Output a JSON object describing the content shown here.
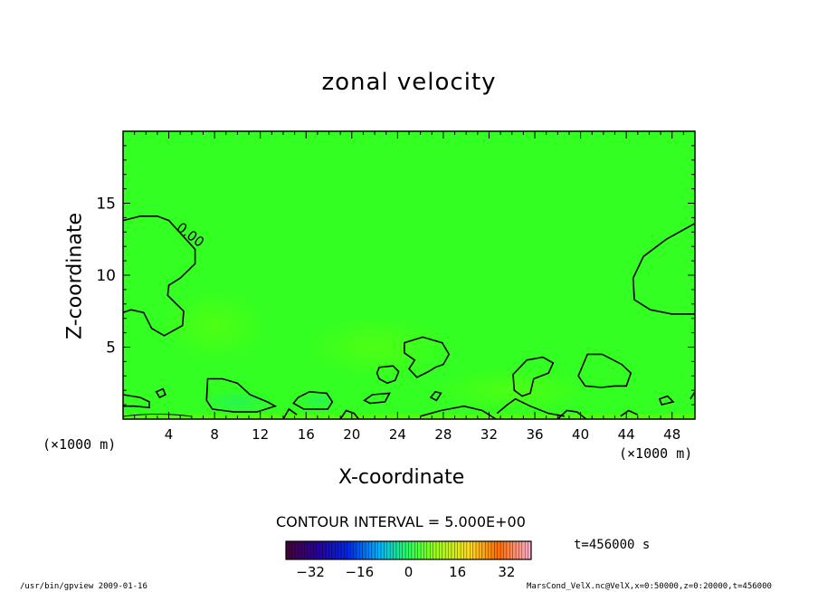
{
  "chart_data": {
    "type": "heatmap",
    "title": "zonal velocity",
    "xlabel": "X-coordinate",
    "ylabel": "Z-coordinate",
    "x_unit": "(×1000 m)",
    "y_unit": "(×1000 m)",
    "xlim": [
      0,
      50
    ],
    "ylim": [
      0,
      20
    ],
    "x_ticks": [
      4,
      8,
      12,
      16,
      20,
      24,
      28,
      32,
      36,
      40,
      44,
      48
    ],
    "y_ticks": [
      5,
      10,
      15
    ],
    "contour_interval_text": "CONTOUR INTERVAL = 5.000E+00",
    "contour_label": "0.00",
    "colorbar": {
      "min": -40,
      "max": 40,
      "ticks": [
        -32,
        -16,
        0,
        16,
        32
      ]
    },
    "time_text": "t=456000 s",
    "background_color": "#33ff22",
    "contour_levels": [
      0
    ]
  },
  "footer": {
    "left": "/usr/bin/gpview  2009-01-16",
    "right": "MarsCond_VelX.nc@VelX,x=0:50000,z=0:20000,t=456000"
  }
}
